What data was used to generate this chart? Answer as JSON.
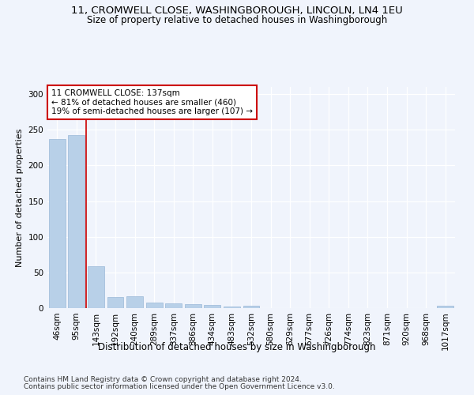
{
  "title_line1": "11, CROMWELL CLOSE, WASHINGBOROUGH, LINCOLN, LN4 1EU",
  "title_line2": "Size of property relative to detached houses in Washingborough",
  "xlabel": "Distribution of detached houses by size in Washingborough",
  "ylabel": "Number of detached properties",
  "categories": [
    "46sqm",
    "95sqm",
    "143sqm",
    "192sqm",
    "240sqm",
    "289sqm",
    "337sqm",
    "386sqm",
    "434sqm",
    "483sqm",
    "532sqm",
    "580sqm",
    "629sqm",
    "677sqm",
    "726sqm",
    "774sqm",
    "823sqm",
    "871sqm",
    "920sqm",
    "968sqm",
    "1017sqm"
  ],
  "values": [
    237,
    242,
    59,
    16,
    17,
    8,
    7,
    5,
    4,
    2,
    3,
    0,
    0,
    0,
    0,
    0,
    0,
    0,
    0,
    0,
    3
  ],
  "bar_color": "#b8d0e8",
  "bar_edge_color": "#9ab8d8",
  "vline_x_idx": 1.5,
  "vline_color": "#cc0000",
  "annotation_title": "11 CROMWELL CLOSE: 137sqm",
  "annotation_line2": "← 81% of detached houses are smaller (460)",
  "annotation_line3": "19% of semi-detached houses are larger (107) →",
  "annotation_box_color": "#ffffff",
  "annotation_box_edge": "#cc0000",
  "ylim": [
    0,
    310
  ],
  "yticks": [
    0,
    50,
    100,
    150,
    200,
    250,
    300
  ],
  "footnote_line1": "Contains HM Land Registry data © Crown copyright and database right 2024.",
  "footnote_line2": "Contains public sector information licensed under the Open Government Licence v3.0.",
  "bg_color": "#f0f4fc",
  "grid_color": "#ffffff",
  "title_fontsize": 9.5,
  "subtitle_fontsize": 8.5,
  "ylabel_fontsize": 8,
  "xlabel_fontsize": 8.5,
  "tick_fontsize": 7.5,
  "annotation_fontsize": 7.5,
  "footnote_fontsize": 6.5
}
